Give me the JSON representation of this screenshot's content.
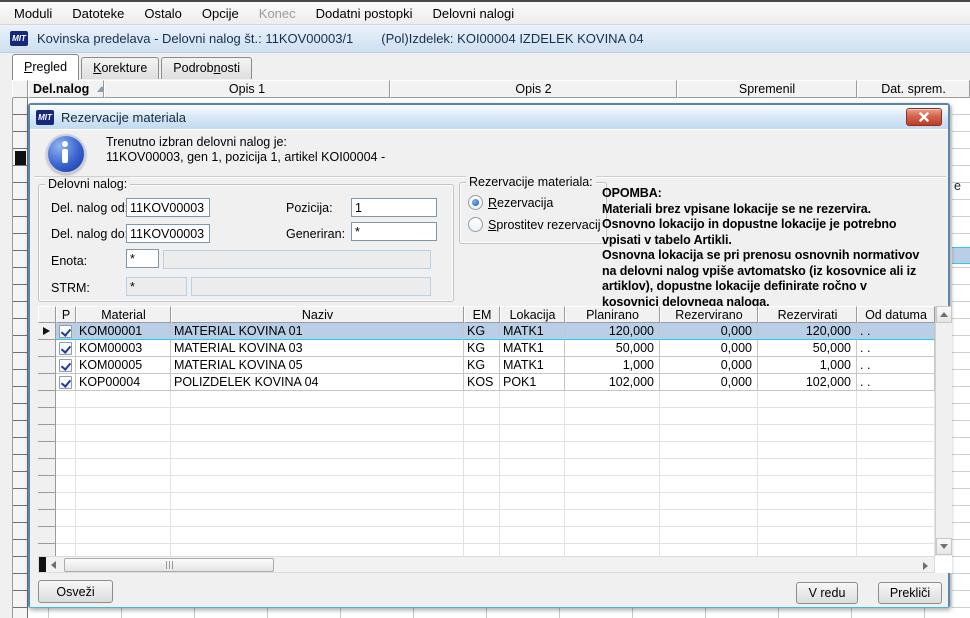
{
  "colors": {
    "selection_row": "#b9cfe8",
    "selection_border": "#2fc9e8",
    "dialog_frame": "#5b86ab",
    "close_button_red": "#bc3c27",
    "info_icon_blue": "#3a63cf",
    "check_mark": "#21399b",
    "titlebar_top": "#eaf2fb",
    "titlebar_bottom": "#cddff1"
  },
  "branding": {
    "logo_text": "MIT"
  },
  "menu": {
    "items": [
      {
        "label": "Moduli",
        "enabled": true
      },
      {
        "label": "Datoteke",
        "enabled": true
      },
      {
        "label": "Ostalo",
        "enabled": true
      },
      {
        "label": "Opcije",
        "enabled": true
      },
      {
        "label": "Konec",
        "enabled": false
      },
      {
        "label": "Dodatni postopki",
        "enabled": true
      },
      {
        "label": "Delovni nalogi",
        "enabled": true
      }
    ]
  },
  "window": {
    "title": "Kovinska predelava - Delovni nalog št.: 11KOV00003/1",
    "subtitle": "(Pol)Izdelek: KOI00004 IZDELEK KOVINA 04"
  },
  "tabs": [
    {
      "label": "Pregled",
      "active": true,
      "accel": 0
    },
    {
      "label": "Korekture",
      "active": false,
      "accel": 0
    },
    {
      "label": "Podrobnosti",
      "active": false,
      "accel": 6
    }
  ],
  "background_table": {
    "columns": [
      "Del.nalog",
      "Opis 1",
      "Opis 2",
      "Spremenil",
      "Dat. sprem."
    ],
    "sort_column": "Del.nalog",
    "sort_direction": "asc",
    "partial_right_text": "e"
  },
  "dialog": {
    "title": "Rezervacije materiala",
    "info": {
      "line1": "Trenutno izbran delovni nalog je:",
      "line2": "11KOV00003, gen 1, pozicija 1, artikel KOI00004 -"
    },
    "work_order_group": {
      "title": "Delovni nalog:",
      "del_nalog_od": {
        "label": "Del. nalog od:",
        "value": "11KOV00003"
      },
      "del_nalog_do": {
        "label": "Del. nalog do:",
        "value": "11KOV00003"
      },
      "pozicija": {
        "label": "Pozicija:",
        "value": "1"
      },
      "generiran": {
        "label": "Generiran:",
        "value": "*"
      },
      "enota": {
        "label": "Enota:",
        "value": "*",
        "value_long": ""
      },
      "strm": {
        "label": "STRM:",
        "value": "*",
        "value_long": ""
      }
    },
    "reservation_group": {
      "title": "Rezervacije materiala:",
      "options": [
        {
          "label": "Rezervacija",
          "selected": true,
          "accel": 0
        },
        {
          "label": "Sprostitev rezervacij",
          "selected": false,
          "accel": 0
        }
      ]
    },
    "note": {
      "title": "OPOMBA:",
      "lines": [
        " Materiali brez vpisane lokacije  se ne rezervira.",
        "Osnovno lokacijo  in dopustne lokacije je potrebno",
        "vpisati v tabelo Artikli.",
        "Osnovna lokacija se pri prenosu osnovnih normativov",
        "na delovni nalog vpiše avtomatsko (iz kosovnice ali iz",
        "artiklov), dopustne lokacije definirate ročno v",
        "kosovnici delovnega naloga."
      ]
    },
    "grid": {
      "columns": [
        "P",
        "Material",
        "Naziv",
        "EM",
        "Lokacija",
        "Planirano",
        "Rezervirano",
        "Rezervirati",
        "Od datuma"
      ],
      "rows": [
        {
          "selected": true,
          "checked": true,
          "material": "KOM00001",
          "naziv": "MATERIAL KOVINA 01",
          "em": "KG",
          "lokacija": "MATK1",
          "planirano": "120,000",
          "rezervirano": "0,000",
          "rezervirati": "120,000",
          "od_datuma": " .  ."
        },
        {
          "selected": false,
          "checked": true,
          "material": "KOM00003",
          "naziv": "MATERIAL KOVINA 03",
          "em": "KG",
          "lokacija": "MATK1",
          "planirano": "50,000",
          "rezervirano": "0,000",
          "rezervirati": "50,000",
          "od_datuma": " .  ."
        },
        {
          "selected": false,
          "checked": true,
          "material": "KOM00005",
          "naziv": "MATERIAL KOVINA 05",
          "em": "KG",
          "lokacija": "MATK1",
          "planirano": "1,000",
          "rezervirano": "0,000",
          "rezervirati": "1,000",
          "od_datuma": " .  ."
        },
        {
          "selected": false,
          "checked": true,
          "material": "KOP00004",
          "naziv": "POLIZDELEK KOVINA 04",
          "em": "KOS",
          "lokacija": "POK1",
          "planirano": "102,000",
          "rezervirano": "0,000",
          "rezervirati": "102,000",
          "od_datuma": " .  ."
        }
      ],
      "empty_row_count": 10
    },
    "buttons": {
      "refresh": "Osveži",
      "ok": "V redu",
      "cancel": "Prekliči"
    }
  }
}
